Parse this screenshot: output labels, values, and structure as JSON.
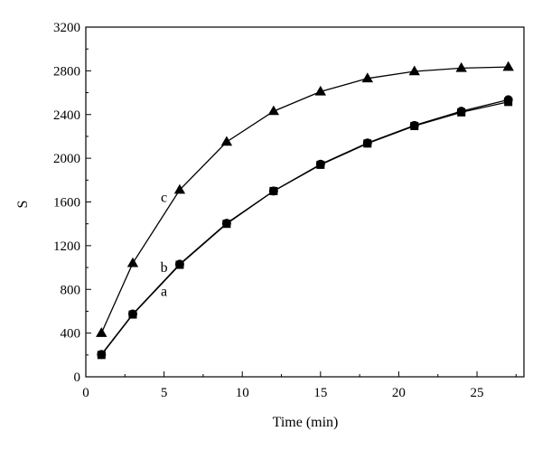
{
  "chart_data": {
    "type": "line",
    "title": "",
    "xlabel": "Time (min)",
    "ylabel": "S",
    "xlim": [
      0,
      28
    ],
    "ylim": [
      0,
      3200
    ],
    "x_ticks": [
      0,
      5,
      10,
      15,
      20,
      25
    ],
    "x_tick_labels": [
      "0",
      "5",
      "10",
      "15",
      "20",
      "25"
    ],
    "y_ticks": [
      0,
      400,
      800,
      1200,
      1600,
      2000,
      2400,
      2800,
      3200
    ],
    "y_tick_labels": [
      "0",
      "400",
      "800",
      "1200",
      "1600",
      "2000",
      "2400",
      "2800",
      "3200"
    ],
    "grid": false,
    "legend": "none",
    "series": [
      {
        "name": "a",
        "marker": "square",
        "color": "#000000",
        "x": [
          1,
          3,
          6,
          9,
          12,
          15,
          18,
          21,
          24,
          27
        ],
        "y": [
          200,
          570,
          1025,
          1400,
          1700,
          1940,
          2135,
          2295,
          2420,
          2515
        ]
      },
      {
        "name": "b",
        "marker": "circle",
        "color": "#000000",
        "x": [
          1,
          3,
          6,
          9,
          12,
          15,
          18,
          21,
          24,
          27
        ],
        "y": [
          205,
          575,
          1030,
          1405,
          1700,
          1945,
          2140,
          2300,
          2430,
          2535
        ]
      },
      {
        "name": "c",
        "marker": "triangle",
        "color": "#000000",
        "x": [
          1,
          3,
          6,
          9,
          12,
          15,
          18,
          21,
          24,
          27
        ],
        "y": [
          400,
          1040,
          1710,
          2150,
          2430,
          2610,
          2730,
          2795,
          2825,
          2835
        ]
      }
    ],
    "annotations": [
      {
        "text": "c",
        "x": 5,
        "y": 1600
      },
      {
        "text": "b",
        "x": 5,
        "y": 960
      },
      {
        "text": "a",
        "x": 5,
        "y": 740
      }
    ]
  }
}
